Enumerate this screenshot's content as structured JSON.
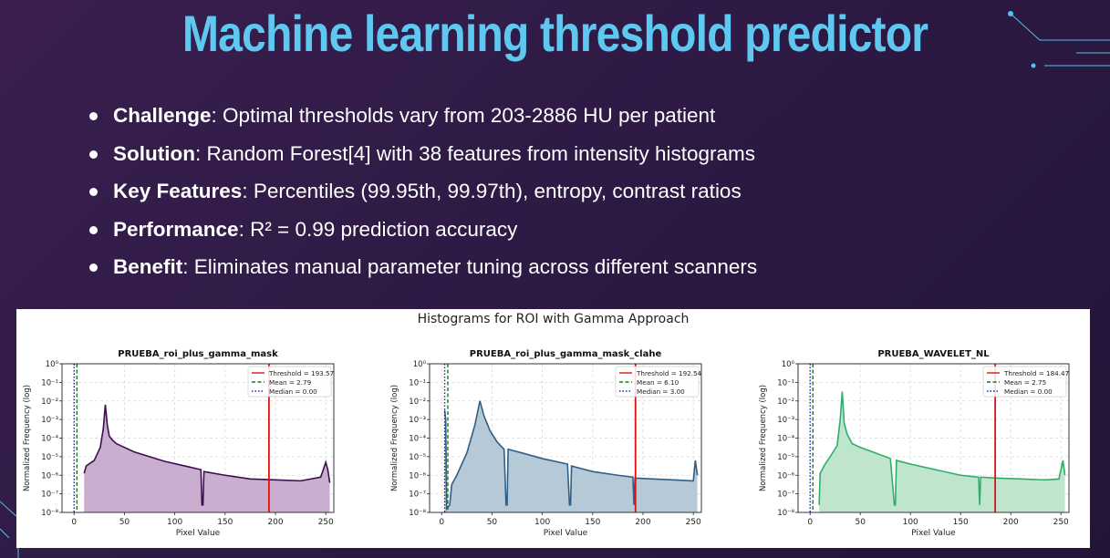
{
  "slide": {
    "title": "Machine learning threshold predictor",
    "bullets": [
      {
        "label": "Challenge",
        "text": ": Optimal thresholds vary from 203-2886 HU per patient"
      },
      {
        "label": "Solution",
        "text": ": Random Forest[4]  with 38 features from intensity histograms"
      },
      {
        "label": "Key Features",
        "text": ": Percentiles (99.95th, 99.97th), entropy, contrast ratios"
      },
      {
        "label": "Performance",
        "text": ": R² = 0.99 prediction accuracy"
      },
      {
        "label": "Benefit",
        "text": ": Eliminates manual parameter tuning across different scanners"
      }
    ]
  },
  "figure": {
    "suptitle": "Histograms for ROI with Gamma Approach",
    "xlabel": "Pixel Value",
    "ylabel": "Normalized Frequency (log)"
  },
  "chart_data": [
    {
      "type": "area",
      "title": "PRUEBA_roi_plus_gamma_mask",
      "xlabel": "Pixel Value",
      "ylabel": "Normalized Frequency (log)",
      "xlim": [
        -12,
        258
      ],
      "ylim_log10": [
        -8,
        0
      ],
      "color": "#3b0f4f",
      "fill": "#c9aed0",
      "xticks": [
        0,
        50,
        100,
        150,
        200,
        250
      ],
      "yticks": [
        "10⁰",
        "10⁻¹",
        "10⁻²",
        "10⁻³",
        "10⁻⁴",
        "10⁻⁵",
        "10⁻⁶",
        "10⁻⁷",
        "10⁻⁸"
      ],
      "vlines": {
        "threshold": 193.57,
        "mean": 2.79,
        "median": 0.0
      },
      "legend": [
        "Threshold = 193.57",
        "Mean = 2.79",
        "Median = 0.00"
      ],
      "series": {
        "x": [
          10,
          12,
          20,
          26,
          29,
          31,
          33,
          35,
          38,
          42,
          50,
          60,
          75,
          90,
          110,
          126,
          127,
          128,
          129,
          150,
          175,
          200,
          225,
          245,
          250,
          252,
          254
        ],
        "log_y": [
          -5.9,
          -5.5,
          -5.2,
          -4.5,
          -3.5,
          -2.2,
          -3.3,
          -3.9,
          -4.1,
          -4.3,
          -4.5,
          -4.75,
          -5.0,
          -5.25,
          -5.5,
          -5.7,
          -7.6,
          -7.6,
          -5.8,
          -6.0,
          -6.2,
          -6.25,
          -6.3,
          -6.1,
          -5.3,
          -5.7,
          -6.4
        ]
      }
    },
    {
      "type": "area",
      "title": "PRUEBA_roi_plus_gamma_mask_clahe",
      "xlabel": "Pixel Value",
      "ylabel": "Normalized Frequency (log)",
      "xlim": [
        -12,
        258
      ],
      "ylim_log10": [
        -8,
        0
      ],
      "color": "#2f5f86",
      "fill": "#b6c9d7",
      "xticks": [
        0,
        50,
        100,
        150,
        200,
        250
      ],
      "yticks": [
        "10⁰",
        "10⁻¹",
        "10⁻²",
        "10⁻³",
        "10⁻⁴",
        "10⁻⁵",
        "10⁻⁶",
        "10⁻⁷",
        "10⁻⁸"
      ],
      "vlines": {
        "threshold": 192.54,
        "mean": 6.1,
        "median": 3.0
      },
      "legend": [
        "Threshold = 192.54",
        "Mean = 6.10",
        "Median = 3.00"
      ],
      "series": {
        "x": [
          3,
          4,
          5,
          8,
          10,
          15,
          25,
          33,
          38,
          42,
          48,
          55,
          62,
          64,
          65,
          66,
          80,
          100,
          125,
          127,
          128,
          129,
          150,
          175,
          190,
          191,
          192,
          210,
          230,
          250,
          252,
          254
        ],
        "log_y": [
          -2.5,
          -3.0,
          -7.8,
          -7.6,
          -6.5,
          -6.0,
          -4.8,
          -3.3,
          -2.0,
          -2.8,
          -3.6,
          -4.2,
          -4.6,
          -7.6,
          -7.6,
          -4.6,
          -4.8,
          -5.1,
          -5.4,
          -7.6,
          -7.6,
          -5.5,
          -5.8,
          -6.0,
          -6.1,
          -7.6,
          -6.15,
          -6.2,
          -6.25,
          -6.3,
          -5.2,
          -6.0
        ]
      }
    },
    {
      "type": "area",
      "title": "PRUEBA_WAVELET_NL",
      "xlabel": "Pixel Value",
      "ylabel": "Normalized Frequency (log)",
      "xlim": [
        -12,
        258
      ],
      "ylim_log10": [
        -8,
        0
      ],
      "color": "#2fae6a",
      "fill": "#bfe6cd",
      "xticks": [
        0,
        50,
        100,
        150,
        200,
        250
      ],
      "yticks": [
        "10⁰",
        "10⁻¹",
        "10⁻²",
        "10⁻³",
        "10⁻⁴",
        "10⁻⁵",
        "10⁻⁶",
        "10⁻⁷",
        "10⁻⁸"
      ],
      "vlines": {
        "threshold": 184.47,
        "mean": 2.75,
        "median": 0.0
      },
      "legend": [
        "Threshold = 184.47",
        "Mean = 2.75",
        "Median = 0.00"
      ],
      "series": {
        "x": [
          9,
          10,
          15,
          20,
          27,
          30,
          32,
          34,
          37,
          42,
          50,
          65,
          80,
          84,
          85,
          86,
          100,
          125,
          150,
          168,
          169,
          170,
          185,
          210,
          235,
          248,
          252,
          254
        ],
        "log_y": [
          -7.6,
          -5.9,
          -5.4,
          -5.0,
          -4.4,
          -3.0,
          -1.5,
          -3.2,
          -3.8,
          -4.3,
          -4.5,
          -4.8,
          -5.1,
          -7.6,
          -7.6,
          -5.2,
          -5.4,
          -5.7,
          -6.0,
          -6.1,
          -7.6,
          -6.1,
          -6.15,
          -6.2,
          -6.25,
          -6.2,
          -5.2,
          -6.0
        ]
      }
    }
  ]
}
